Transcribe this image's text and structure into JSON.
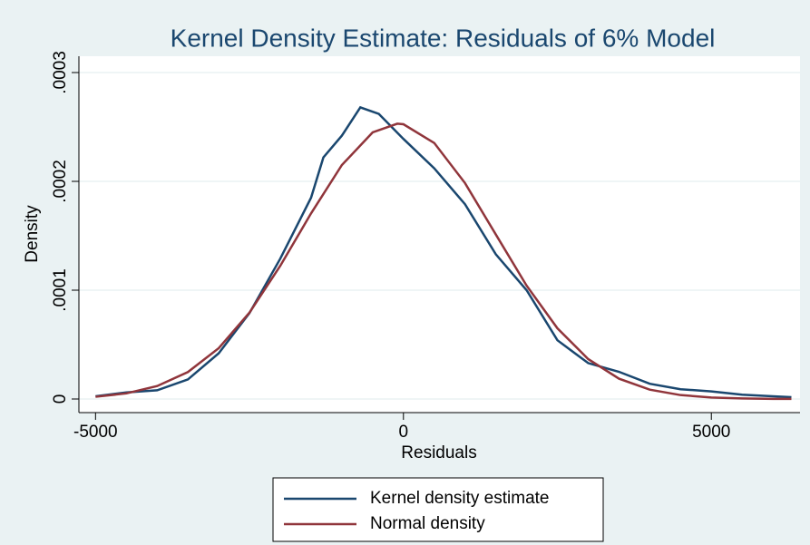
{
  "chart_data": {
    "type": "line",
    "title": "Kernel Density Estimate: Residuals of 6% Model",
    "x_label": "Residuals",
    "y_label": "Density",
    "xlim": [
      -5270,
      6440
    ],
    "ylim": [
      -1.25e-05,
      0.000315
    ],
    "xticks": [
      -5000,
      0,
      5000
    ],
    "yticks": [
      {
        "value": 0,
        "label": "0"
      },
      {
        "value": 0.0001,
        "label": ".0001"
      },
      {
        "value": 0.0002,
        "label": ".0002"
      },
      {
        "value": 0.0003,
        "label": ".0003"
      }
    ],
    "grid": true,
    "series": [
      {
        "name": "Kernel density estimate",
        "color": "#1a476f",
        "x": [
          -5000,
          -4500,
          -4000,
          -3500,
          -3000,
          -2500,
          -2000,
          -1500,
          -1300,
          -1000,
          -700,
          -400,
          0,
          500,
          1000,
          1500,
          2000,
          2500,
          3000,
          3500,
          4000,
          4500,
          5000,
          5500,
          6000,
          6300
        ],
        "values": [
          2.5e-06,
          6e-06,
          8e-06,
          1.8e-05,
          4.2e-05,
          7.9e-05,
          0.000129,
          0.000185,
          0.000222,
          0.000242,
          0.000268,
          0.000262,
          0.000239,
          0.000212,
          0.000179,
          0.000133,
          0.0001,
          5.4e-05,
          3.3e-05,
          2.5e-05,
          1.4e-05,
          9e-06,
          7e-06,
          4e-06,
          2.5e-06,
          1.7e-06
        ]
      },
      {
        "name": "Normal density",
        "color": "#90353b",
        "x": [
          -5000,
          -4500,
          -4000,
          -3500,
          -3000,
          -2500,
          -2000,
          -1500,
          -1000,
          -500,
          -100,
          0,
          500,
          1000,
          1500,
          2000,
          2500,
          3000,
          3500,
          4000,
          4500,
          5000,
          5500,
          6000,
          6300
        ],
        "values": [
          2.03e-06,
          5.16e-06,
          1.19e-05,
          2.48e-05,
          4.67e-05,
          7.94e-05,
          0.0001224,
          0.0001706,
          0.000215,
          0.000245,
          0.000253,
          0.0002525,
          0.0002353,
          0.0001984,
          0.0001512,
          0.0001042,
          6.5e-05,
          3.67e-05,
          1.87e-05,
          8.6e-06,
          3.6e-06,
          1.4e-06,
          5e-07,
          1.4e-07,
          7e-08
        ]
      }
    ]
  }
}
